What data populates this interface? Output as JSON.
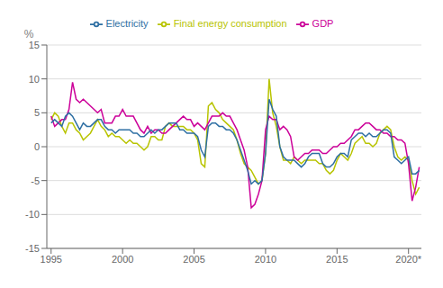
{
  "chart_data": {
    "type": "line",
    "y_label": "%",
    "x": [
      1995.0,
      1995.25,
      1995.5,
      1995.75,
      1996.0,
      1996.25,
      1996.5,
      1996.75,
      1997.0,
      1997.25,
      1997.5,
      1997.75,
      1998.0,
      1998.25,
      1998.5,
      1998.75,
      1999.0,
      1999.25,
      1999.5,
      1999.75,
      2000.0,
      2000.25,
      2000.5,
      2000.75,
      2001.0,
      2001.25,
      2001.5,
      2001.75,
      2002.0,
      2002.25,
      2002.5,
      2002.75,
      2003.0,
      2003.25,
      2003.5,
      2003.75,
      2004.0,
      2004.25,
      2004.5,
      2004.75,
      2005.0,
      2005.25,
      2005.5,
      2005.75,
      2006.0,
      2006.25,
      2006.5,
      2006.75,
      2007.0,
      2007.25,
      2007.5,
      2007.75,
      2008.0,
      2008.25,
      2008.5,
      2008.75,
      2009.0,
      2009.25,
      2009.5,
      2009.75,
      2010.0,
      2010.25,
      2010.5,
      2010.75,
      2011.0,
      2011.25,
      2011.5,
      2011.75,
      2012.0,
      2012.25,
      2012.5,
      2012.75,
      2013.0,
      2013.25,
      2013.5,
      2013.75,
      2014.0,
      2014.25,
      2014.5,
      2014.75,
      2015.0,
      2015.25,
      2015.5,
      2015.75,
      2016.0,
      2016.25,
      2016.5,
      2016.75,
      2017.0,
      2017.25,
      2017.5,
      2017.75,
      2018.0,
      2018.25,
      2018.5,
      2018.75,
      2019.0,
      2019.25,
      2019.5,
      2019.75,
      2020.0,
      2020.25,
      2020.5,
      2020.75
    ],
    "series": [
      {
        "name": "Final energy consumption",
        "color": "#b8c400",
        "values": [
          4.0,
          5.0,
          4.5,
          3.0,
          2.0,
          3.5,
          3.5,
          2.5,
          2.0,
          1.0,
          1.5,
          2.0,
          3.0,
          4.0,
          3.0,
          2.5,
          1.5,
          2.0,
          1.5,
          1.5,
          1.0,
          0.5,
          1.0,
          0.5,
          0.5,
          0.0,
          -0.5,
          0.0,
          1.5,
          1.5,
          1.0,
          1.0,
          3.0,
          3.5,
          3.0,
          3.0,
          3.0,
          3.0,
          2.5,
          2.5,
          2.0,
          1.0,
          -2.5,
          -3.0,
          6.0,
          6.5,
          5.5,
          5.0,
          4.0,
          3.5,
          3.0,
          2.5,
          1.0,
          -1.0,
          -2.5,
          -3.0,
          -3.5,
          -4.5,
          -5.5,
          -5.0,
          -1.0,
          10.0,
          5.0,
          3.0,
          0.0,
          -2.0,
          -2.0,
          -2.5,
          -1.5,
          -2.0,
          -2.5,
          -2.0,
          -2.0,
          -2.0,
          -2.0,
          -2.5,
          -2.5,
          -3.5,
          -4.0,
          -3.5,
          -2.0,
          -1.0,
          -1.5,
          -2.0,
          -1.0,
          0.5,
          1.0,
          1.5,
          0.5,
          0.5,
          0.0,
          0.5,
          2.0,
          2.5,
          3.0,
          2.5,
          0.0,
          -1.5,
          -2.0,
          -1.5,
          -2.0,
          -5.0,
          -7.0,
          -6.0
        ]
      },
      {
        "name": "GDP",
        "color": "#cc0099",
        "values": [
          4.5,
          3.0,
          3.5,
          4.0,
          4.0,
          5.5,
          9.5,
          7.0,
          6.5,
          7.0,
          6.5,
          6.0,
          5.5,
          5.0,
          5.5,
          3.5,
          3.5,
          3.5,
          4.5,
          4.5,
          5.5,
          4.5,
          4.5,
          4.5,
          3.5,
          2.5,
          2.0,
          3.0,
          2.0,
          2.5,
          2.5,
          2.0,
          2.0,
          2.5,
          3.0,
          3.5,
          4.0,
          4.5,
          4.0,
          4.0,
          3.0,
          3.5,
          3.0,
          2.5,
          3.5,
          4.5,
          4.5,
          4.5,
          5.0,
          4.5,
          4.5,
          3.5,
          2.5,
          1.0,
          -0.5,
          -3.0,
          -9.0,
          -8.5,
          -7.0,
          -5.0,
          2.5,
          4.5,
          4.0,
          4.0,
          2.5,
          3.0,
          2.5,
          1.5,
          -1.5,
          -2.0,
          -1.5,
          -1.0,
          -1.0,
          -0.5,
          -0.5,
          -0.5,
          -1.0,
          -1.0,
          -0.5,
          0.0,
          0.0,
          0.5,
          0.5,
          1.0,
          1.5,
          2.5,
          2.5,
          3.0,
          3.5,
          3.5,
          3.0,
          2.5,
          2.5,
          2.0,
          2.0,
          1.5,
          1.5,
          1.0,
          1.0,
          0.5,
          -2.5,
          -8.0,
          -6.0,
          -3.0
        ]
      },
      {
        "name": "Electricity",
        "color": "#2e6fa3",
        "values": [
          3.5,
          4.0,
          3.5,
          3.0,
          4.5,
          5.0,
          4.5,
          3.5,
          2.5,
          3.5,
          3.0,
          3.0,
          3.5,
          4.0,
          4.0,
          3.0,
          2.5,
          2.5,
          2.0,
          2.5,
          2.5,
          2.5,
          2.5,
          2.0,
          2.0,
          1.5,
          1.5,
          2.0,
          2.5,
          2.0,
          2.5,
          2.5,
          3.0,
          3.5,
          3.5,
          3.5,
          2.5,
          2.5,
          2.0,
          2.0,
          2.0,
          1.5,
          -0.5,
          -1.5,
          3.0,
          3.5,
          3.5,
          3.0,
          3.0,
          2.5,
          2.5,
          2.0,
          1.0,
          -0.5,
          -2.0,
          -3.5,
          -5.5,
          -5.0,
          -5.5,
          -5.0,
          -1.0,
          7.0,
          5.5,
          4.5,
          0.0,
          -1.5,
          -2.0,
          -2.0,
          -2.0,
          -2.5,
          -3.0,
          -2.5,
          -1.5,
          -1.0,
          -1.0,
          -1.0,
          -2.5,
          -3.0,
          -3.0,
          -2.5,
          -1.5,
          -1.0,
          -1.0,
          -1.5,
          1.0,
          1.5,
          2.0,
          2.0,
          1.5,
          2.0,
          1.5,
          1.5,
          2.0,
          2.5,
          2.5,
          2.0,
          -1.5,
          -2.0,
          -2.5,
          -2.0,
          -1.5,
          -4.0,
          -4.0,
          -3.5
        ]
      }
    ],
    "xlim": [
      1994.7,
      2020.9
    ],
    "xticks": [
      1995,
      2000,
      2005,
      2010,
      2015,
      {
        "value": 2020,
        "label": "2020*"
      }
    ],
    "ylim": [
      -15,
      15
    ],
    "yticks": [
      -15,
      -10,
      -5,
      0,
      5,
      10,
      15
    ],
    "grid": true,
    "legend": "top"
  }
}
